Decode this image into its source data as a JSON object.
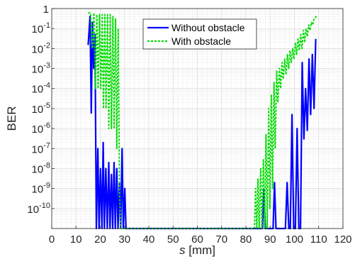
{
  "chart_data": {
    "type": "line",
    "xlabel_italic": "s",
    "xlabel_unit": " [mm]",
    "ylabel": "BER",
    "x_scale": "linear",
    "y_scale": "log",
    "xlim": [
      0,
      120
    ],
    "ylim": [
      1e-11,
      1
    ],
    "x_ticks": [
      0,
      10,
      20,
      30,
      40,
      50,
      60,
      70,
      80,
      90,
      100,
      110,
      120
    ],
    "x_tick_labels": [
      "0",
      "10",
      "20",
      "30",
      "40",
      "50",
      "60",
      "70",
      "80",
      "90",
      "100",
      "110",
      "120"
    ],
    "y_tick_labels": [
      {
        "exp": 0,
        "text": "1"
      },
      {
        "exp": -1,
        "text": "10",
        "sup": "-1"
      },
      {
        "exp": -2,
        "text": "10",
        "sup": "-2"
      },
      {
        "exp": -3,
        "text": "10",
        "sup": "-3"
      },
      {
        "exp": -4,
        "text": "10",
        "sup": "-4"
      },
      {
        "exp": -5,
        "text": "10",
        "sup": "-5"
      },
      {
        "exp": -6,
        "text": "10",
        "sup": "-6"
      },
      {
        "exp": -7,
        "text": "10",
        "sup": "-7"
      },
      {
        "exp": -8,
        "text": "10",
        "sup": "-8"
      },
      {
        "exp": -9,
        "text": "10",
        "sup": "-9"
      },
      {
        "exp": -10,
        "text": "10",
        "sup": "-10"
      }
    ],
    "grid": true,
    "minor_grid": true,
    "legend_position": "top-center",
    "series": [
      {
        "name": "Without obstacle",
        "color": "#0000ff",
        "style": "solid",
        "points": [
          [
            15,
            0.015
          ],
          [
            15.8,
            0.4
          ],
          [
            16.3,
            6e-06
          ],
          [
            16.8,
            0.2
          ],
          [
            17.3,
            0.001
          ],
          [
            17.8,
            0.05
          ],
          [
            18.4,
            1e-11
          ],
          [
            19.0,
            1e-07
          ],
          [
            19.5,
            1e-11
          ],
          [
            20.1,
            1e-08
          ],
          [
            20.7,
            1e-11
          ],
          [
            21.2,
            2e-07
          ],
          [
            21.7,
            1e-11
          ],
          [
            22.3,
            1e-08
          ],
          [
            22.9,
            1e-11
          ],
          [
            23.5,
            2e-08
          ],
          [
            24.0,
            1e-11
          ],
          [
            24.6,
            5e-09
          ],
          [
            25.1,
            1e-11
          ],
          [
            25.7,
            2e-08
          ],
          [
            26.2,
            1e-11
          ],
          [
            26.8,
            1e-08
          ],
          [
            27.3,
            1e-11
          ],
          [
            27.9,
            2e-09
          ],
          [
            28.4,
            1e-11
          ],
          [
            29.0,
            1e-07
          ],
          [
            29.5,
            1e-11
          ],
          [
            30.1,
            1e-09
          ],
          [
            30.6,
            1e-11
          ],
          [
            85,
            1e-11
          ],
          [
            86,
            1e-11
          ],
          [
            86.8,
            1e-11
          ],
          [
            87.4,
            1e-09
          ],
          [
            88.0,
            1e-11
          ],
          [
            88.6,
            1e-11
          ],
          [
            89.5,
            1e-11
          ],
          [
            90.5,
            1e-11
          ],
          [
            91.2,
            1e-11
          ],
          [
            91.8,
            2e-09
          ],
          [
            92.4,
            1e-11
          ],
          [
            93.6,
            1e-11
          ],
          [
            94.6,
            1e-11
          ],
          [
            95.6,
            1e-11
          ],
          [
            96.3,
            1e-11
          ],
          [
            97.0,
            2e-09
          ],
          [
            97.7,
            1e-11
          ],
          [
            98.3,
            1e-11
          ],
          [
            99.0,
            5e-06
          ],
          [
            99.7,
            1e-11
          ],
          [
            100.4,
            1e-11
          ],
          [
            101.1,
            1e-06
          ],
          [
            101.8,
            1e-11
          ],
          [
            102.5,
            1e-11
          ],
          [
            103.2,
            0.002
          ],
          [
            103.9,
            3e-07
          ],
          [
            104.6,
            0.0001
          ],
          [
            105.3,
            8e-07
          ],
          [
            106.0,
            0.003
          ],
          [
            106.7,
            5e-06
          ],
          [
            107.4,
            0.005
          ],
          [
            108.1,
            1e-05
          ],
          [
            108.8,
            0.03
          ]
        ]
      },
      {
        "name": "With obstacle",
        "color": "#00dd00",
        "style": "dashed",
        "points": [
          [
            15,
            0.6
          ],
          [
            16,
            0.6
          ],
          [
            16.8,
            0.01
          ],
          [
            17.4,
            0.6
          ],
          [
            18.0,
            0.0001
          ],
          [
            18.6,
            0.5
          ],
          [
            19.1,
            0.0001
          ],
          [
            19.7,
            0.5
          ],
          [
            20.2,
            0.0001
          ],
          [
            20.8,
            0.5
          ],
          [
            21.3,
            1e-05
          ],
          [
            21.9,
            0.5
          ],
          [
            22.4,
            1e-05
          ],
          [
            23.0,
            0.5
          ],
          [
            23.5,
            1e-06
          ],
          [
            24.1,
            0.5
          ],
          [
            24.6,
            1e-06
          ],
          [
            25.2,
            0.4
          ],
          [
            25.7,
            1e-06
          ],
          [
            26.3,
            0.3
          ],
          [
            26.8,
            1e-07
          ],
          [
            27.4,
            0.1
          ],
          [
            27.9,
            1e-09
          ],
          [
            28.4,
            1e-11
          ],
          [
            29.0,
            1e-11
          ],
          [
            30.0,
            1e-11
          ],
          [
            83.0,
            1e-11
          ],
          [
            83.5,
            1e-11
          ],
          [
            84.0,
            1e-09
          ],
          [
            84.5,
            1e-11
          ],
          [
            85.0,
            3e-09
          ],
          [
            85.5,
            1e-11
          ],
          [
            86.1,
            1e-08
          ],
          [
            86.6,
            1e-11
          ],
          [
            87.2,
            3e-08
          ],
          [
            87.7,
            1e-11
          ],
          [
            88.3,
            5e-07
          ],
          [
            88.8,
            1e-11
          ],
          [
            89.4,
            1e-05
          ],
          [
            89.9,
            1e-10
          ],
          [
            90.5,
            5e-05
          ],
          [
            91.0,
            1e-09
          ],
          [
            91.6,
            0.0002
          ],
          [
            92.1,
            1e-07
          ],
          [
            92.7,
            0.0008
          ],
          [
            93.2,
            2e-05
          ],
          [
            93.8,
            0.001
          ],
          [
            94.3,
            0.0001
          ],
          [
            94.9,
            0.002
          ],
          [
            95.4,
            0.0003
          ],
          [
            96.0,
            0.003
          ],
          [
            96.5,
            0.0005
          ],
          [
            97.1,
            0.005
          ],
          [
            97.6,
            0.001
          ],
          [
            98.2,
            0.008
          ],
          [
            98.7,
            0.002
          ],
          [
            99.3,
            0.01
          ],
          [
            99.8,
            0.003
          ],
          [
            100.4,
            0.02
          ],
          [
            100.9,
            0.005
          ],
          [
            101.5,
            0.03
          ],
          [
            102.0,
            0.008
          ],
          [
            102.6,
            0.05
          ],
          [
            103.1,
            0.01
          ],
          [
            103.7,
            0.08
          ],
          [
            104.2,
            0.02
          ],
          [
            104.8,
            0.1
          ],
          [
            105.3,
            0.04
          ],
          [
            105.9,
            0.15
          ],
          [
            106.4,
            0.08
          ],
          [
            107.0,
            0.2
          ],
          [
            107.5,
            0.15
          ],
          [
            108.1,
            0.3
          ],
          [
            108.6,
            0.35
          ],
          [
            109.2,
            0.45
          ]
        ]
      }
    ]
  }
}
